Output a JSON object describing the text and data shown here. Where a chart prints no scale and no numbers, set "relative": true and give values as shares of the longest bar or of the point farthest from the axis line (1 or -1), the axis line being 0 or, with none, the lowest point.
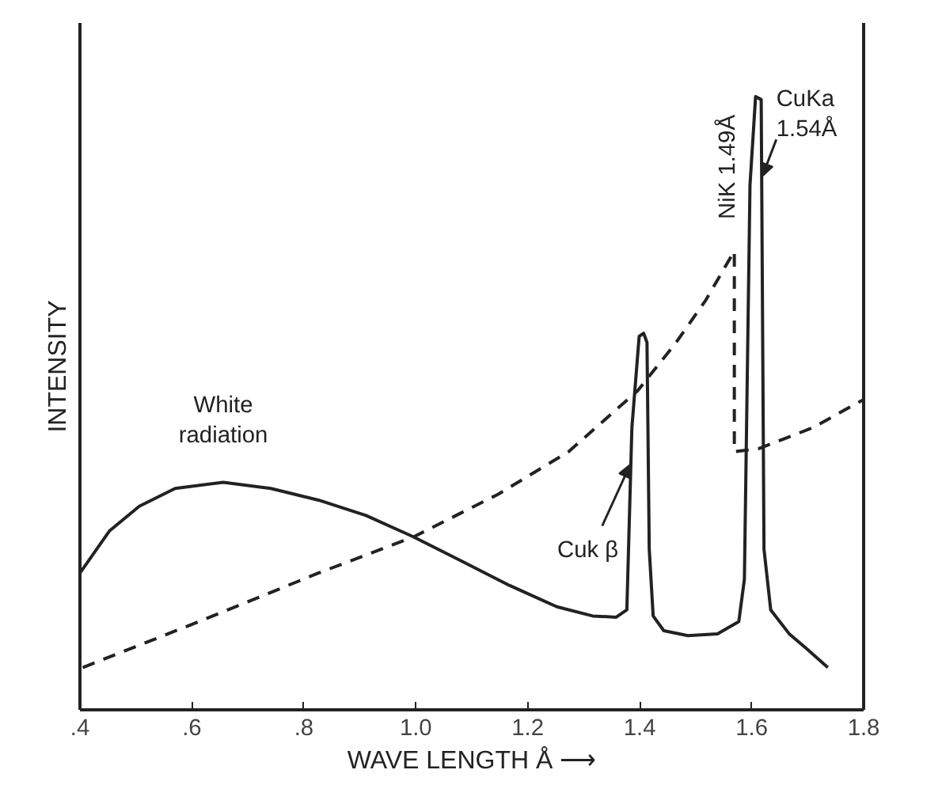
{
  "chart_data": {
    "type": "line",
    "relative": true,
    "xlabel": "WAVE LENGTH Å ⟶",
    "ylabel": "INTENSITY",
    "xlim": [
      0.4,
      1.8
    ],
    "xticks": [
      {
        "value": 0.4,
        "label": ".4"
      },
      {
        "value": 0.6,
        "label": ".6"
      },
      {
        "value": 0.8,
        "label": ".8"
      },
      {
        "value": 1.0,
        "label": "1.0"
      },
      {
        "value": 1.2,
        "label": "1.2"
      },
      {
        "value": 1.4,
        "label": "1.4"
      },
      {
        "value": 1.6,
        "label": "1.6"
      },
      {
        "value": 1.8,
        "label": "1.8"
      }
    ],
    "grid": false,
    "marker": "none",
    "series": [
      {
        "color": "#222222",
        "line_style": "solid",
        "x": [
          0.4,
          0.453,
          0.506,
          0.57,
          0.656,
          0.741,
          0.826,
          0.911,
          0.996,
          1.081,
          1.167,
          1.252,
          1.316,
          1.358,
          1.377,
          1.386,
          1.399,
          1.407,
          1.413,
          1.417,
          1.424,
          1.443,
          1.486,
          1.539,
          1.577,
          1.587,
          1.597,
          1.607,
          1.617,
          1.622,
          1.634,
          1.667,
          1.699,
          1.736
        ],
        "values": [
          0.223,
          0.292,
          0.332,
          0.361,
          0.371,
          0.361,
          0.342,
          0.317,
          0.282,
          0.243,
          0.203,
          0.168,
          0.153,
          0.151,
          0.163,
          0.46,
          0.609,
          0.614,
          0.599,
          0.262,
          0.153,
          0.129,
          0.121,
          0.124,
          0.144,
          0.213,
          0.856,
          1.0,
          0.995,
          0.262,
          0.163,
          0.124,
          0.099,
          0.069
        ]
      },
      {
        "color": "#222222",
        "line_style": "dashed",
        "x": [
          0.405,
          0.613,
          0.826,
          0.996,
          1.146,
          1.273,
          1.396,
          1.465,
          1.518,
          1.569,
          1.569,
          1.613,
          1.709,
          1.798
        ],
        "values": [
          0.069,
          0.144,
          0.223,
          0.282,
          0.351,
          0.421,
          0.52,
          0.599,
          0.668,
          0.748,
          0.421,
          0.426,
          0.46,
          0.505
        ]
      }
    ],
    "annotations": [
      {
        "text": "White\nradiation",
        "x": 0.656,
        "y": 0.371
      },
      {
        "text": "Cuk  β",
        "x": 1.383,
        "y": 0.4
      },
      "NiK 1.49Å",
      {
        "text": "CuKa 1.54Å",
        "x": 1.619,
        "y": 0.87
      }
    ]
  }
}
